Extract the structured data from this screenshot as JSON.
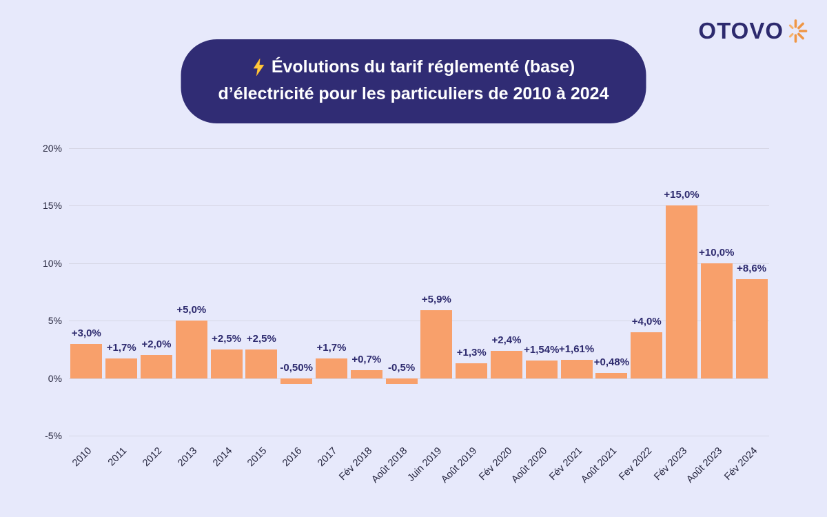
{
  "page": {
    "background": "#e7e9fb",
    "accent_orange": "#f8a06b",
    "navy": "#302c74"
  },
  "logo": {
    "text": "OTOVO",
    "text_color": "#2d2a6e",
    "burst_color": "#ef9645"
  },
  "header": {
    "title_line1": "Évolutions du tarif réglementé (base)",
    "title_line2": "d’électricité pour les particuliers de 2010 à 2024",
    "background": "#302c74",
    "text_color": "#ffffff",
    "lightning_icon": "⚡"
  },
  "chart_data": {
    "type": "bar",
    "title": "Évolutions du tarif réglementé (base) d’électricité pour les particuliers de 2010 à 2024",
    "categories": [
      "2010",
      "2011",
      "2012",
      "2013",
      "2014",
      "2015",
      "2016",
      "2017",
      "Fév 2018",
      "Août 2018",
      "Juin 2019",
      "Août 2019",
      "Fév 2020",
      "Août 2020",
      "Fév 2021",
      "Août 2021",
      "Fev 2022",
      "Fév 2023",
      "Août 2023",
      "Fév 2024"
    ],
    "values": [
      3.0,
      1.7,
      2.0,
      5.0,
      2.5,
      2.5,
      -0.5,
      1.7,
      0.7,
      -0.5,
      5.9,
      1.3,
      2.4,
      1.54,
      1.61,
      0.48,
      4.0,
      15.0,
      10.0,
      8.6
    ],
    "labels": [
      "+3,0%",
      "+1,7%",
      "+2,0%",
      "+5,0%",
      "+2,5%",
      "+2,5%",
      "-0,50%",
      "+1,7%",
      "+0,7%",
      "-0,5%",
      "+5,9%",
      "+1,3%",
      "+2,4%",
      "+1,54%",
      "+1,61%",
      "+0,48%",
      "+4,0%",
      "+15,0%",
      "+10,0%",
      "+8,6%"
    ],
    "xlabel": "",
    "ylabel": "",
    "ylim": [
      -5,
      20
    ],
    "yticks": [
      20,
      15,
      10,
      5,
      0,
      -5
    ],
    "ytick_labels": [
      "20%",
      "15%",
      "10%",
      "5%",
      "0%",
      "-5%"
    ],
    "grid": true,
    "bar_color": "#f8a06b",
    "legend": "none"
  }
}
